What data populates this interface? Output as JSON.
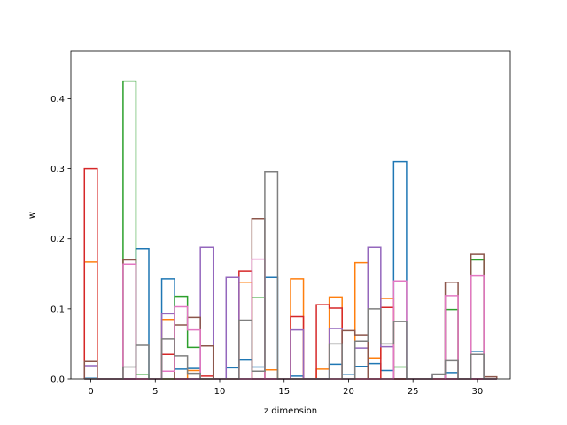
{
  "chart_data": {
    "type": "step",
    "title": "",
    "xlabel": "z dimension",
    "ylabel": "w",
    "xlim": [
      -1.55,
      32.55
    ],
    "ylim": [
      0,
      0.4675
    ],
    "xticks": [
      0,
      5,
      10,
      15,
      20,
      25,
      30
    ],
    "yticks": [
      0.0,
      0.1,
      0.2,
      0.3,
      0.4
    ],
    "ytick_labels": [
      "0.0",
      "0.1",
      "0.2",
      "0.3",
      "0.4"
    ],
    "grid": false,
    "legend": "none",
    "series": [
      {
        "color": "#1f77b4",
        "values": [
          0.001,
          0.0,
          0.0,
          0.0,
          0.186,
          0.0,
          0.143,
          0.014,
          0.015,
          0.0,
          0.0,
          0.016,
          0.027,
          0.017,
          0.145,
          0.0,
          0.004,
          0.0,
          0.0,
          0.021,
          0.006,
          0.018,
          0.022,
          0.012,
          0.31,
          0.0,
          0.0,
          0.0,
          0.009,
          0.0,
          0.039,
          0.0
        ]
      },
      {
        "color": "#ff7f0e",
        "values": [
          0.167,
          0.0,
          0.0,
          0.0,
          0.0,
          0.0,
          0.085,
          0.0,
          0.012,
          0.0,
          0.0,
          0.0,
          0.138,
          0.0,
          0.013,
          0.0,
          0.143,
          0.0,
          0.014,
          0.117,
          0.0,
          0.166,
          0.03,
          0.115,
          0.0,
          0.0,
          0.0,
          0.0,
          0.0,
          0.0,
          0.0,
          0.0
        ]
      },
      {
        "color": "#2ca02c",
        "values": [
          0.0,
          0.0,
          0.0,
          0.425,
          0.006,
          0.0,
          0.0,
          0.118,
          0.045,
          0.0,
          0.0,
          0.0,
          0.0,
          0.116,
          0.0,
          0.0,
          0.0,
          0.0,
          0.0,
          0.0,
          0.0,
          0.0,
          0.0,
          0.0,
          0.017,
          0.0,
          0.0,
          0.0,
          0.099,
          0.0,
          0.17,
          0.0
        ]
      },
      {
        "color": "#d62728",
        "values": [
          0.3,
          0.0,
          0.0,
          0.0,
          0.0,
          0.0,
          0.035,
          0.0,
          0.0,
          0.004,
          0.0,
          0.0,
          0.154,
          0.0,
          0.0,
          0.0,
          0.089,
          0.0,
          0.106,
          0.101,
          0.0,
          0.0,
          0.0,
          0.102,
          0.0,
          0.0,
          0.0,
          0.0,
          0.0,
          0.0,
          0.0,
          0.0
        ]
      },
      {
        "color": "#9467bd",
        "values": [
          0.019,
          0.0,
          0.0,
          0.0,
          0.0,
          0.0,
          0.093,
          0.0,
          0.0,
          0.188,
          0.0,
          0.145,
          0.0,
          0.0,
          0.0,
          0.0,
          0.07,
          0.0,
          0.0,
          0.072,
          0.0,
          0.044,
          0.188,
          0.046,
          0.0,
          0.0,
          0.0,
          0.006,
          0.0,
          0.0,
          0.0,
          0.0
        ]
      },
      {
        "color": "#8c564b",
        "values": [
          0.025,
          0.0,
          0.0,
          0.17,
          0.0,
          0.0,
          0.0,
          0.077,
          0.088,
          0.047,
          0.0,
          0.0,
          0.0,
          0.229,
          0.0,
          0.0,
          0.0,
          0.0,
          0.0,
          0.0,
          0.069,
          0.063,
          0.0,
          0.0,
          0.0,
          0.0,
          0.0,
          0.0,
          0.138,
          0.0,
          0.178,
          0.003
        ]
      },
      {
        "color": "#e377c2",
        "values": [
          0.0,
          0.0,
          0.0,
          0.164,
          0.0,
          0.0,
          0.011,
          0.103,
          0.07,
          0.0,
          0.0,
          0.0,
          0.0,
          0.171,
          0.0,
          0.0,
          0.0,
          0.0,
          0.0,
          0.0,
          0.0,
          0.0,
          0.0,
          0.0,
          0.14,
          0.0,
          0.0,
          0.0,
          0.119,
          0.0,
          0.147,
          0.0
        ]
      },
      {
        "color": "#7f7f7f",
        "values": [
          0.0,
          0.0,
          0.0,
          0.017,
          0.048,
          0.0,
          0.057,
          0.033,
          0.008,
          0.0,
          0.0,
          0.0,
          0.084,
          0.011,
          0.296,
          0.0,
          0.0,
          0.0,
          0.0,
          0.05,
          0.0,
          0.054,
          0.1,
          0.05,
          0.082,
          0.0,
          0.0,
          0.007,
          0.026,
          0.0,
          0.035,
          0.0
        ]
      }
    ]
  }
}
